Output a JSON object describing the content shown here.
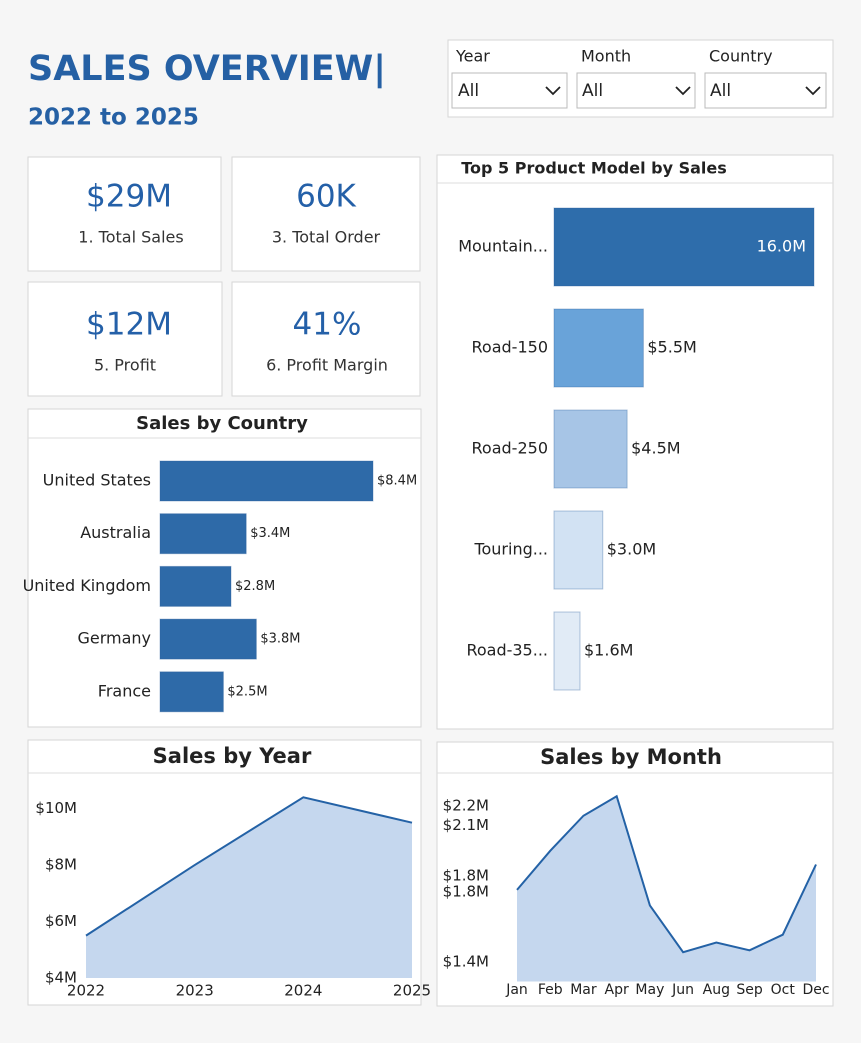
{
  "header": {
    "title": "SALES OVERVIEW|",
    "subtitle": "2022 to 2025"
  },
  "filters": [
    {
      "label": "Year",
      "value": "All"
    },
    {
      "label": "Month",
      "value": "All"
    },
    {
      "label": "Country",
      "value": "All"
    }
  ],
  "kpis": [
    {
      "value": "$29M",
      "label": "1. Total Sales"
    },
    {
      "value": "60K",
      "label": "3. Total Order"
    },
    {
      "value": "$12M",
      "label": "5. Profit"
    },
    {
      "value": "41%",
      "label": "6. Profit Margin"
    }
  ],
  "chart_data": [
    {
      "type": "hbar",
      "title": "Sales by Country",
      "categories": [
        "United States",
        "Australia",
        "United Kingdom",
        "Germany",
        "France"
      ],
      "values": [
        8.4,
        3.4,
        2.8,
        3.8,
        2.5
      ],
      "value_labels": [
        "$8.4M",
        "$3.4M",
        "$2.8M",
        "$3.8M",
        "$2.5M"
      ],
      "color": "#2e6aa8"
    },
    {
      "type": "hbar",
      "title": "Top 5 Product Model by Sales",
      "categories": [
        "Mountain...",
        "Road-150",
        "Road-250",
        "Touring...",
        "Road-35..."
      ],
      "values": [
        16.0,
        5.5,
        4.5,
        3.0,
        1.6
      ],
      "value_labels": [
        "16.0M",
        "$5.5M",
        "$4.5M",
        "$3.0M",
        "$1.6M"
      ],
      "colors": [
        "#2e6dab",
        "#69a3d9",
        "#a7c5e6",
        "#d2e2f3",
        "#e1ebf6"
      ]
    },
    {
      "type": "area",
      "title": "Sales by Year",
      "x": [
        2022,
        2023,
        2024,
        2025
      ],
      "values": [
        5.5,
        8.0,
        10.4,
        9.5
      ],
      "xlim": [
        2022,
        2025
      ],
      "xticks": [
        2022,
        2023,
        2024,
        2025
      ],
      "ylim": [
        4,
        10.8
      ],
      "yticks": [
        {
          "value": 4,
          "label": "$4M"
        },
        {
          "value": 6,
          "label": "$6M"
        },
        {
          "value": 8,
          "label": "$8M"
        },
        {
          "value": 10,
          "label": "$10M"
        }
      ],
      "grid": false,
      "color": "#2462a6",
      "fill": "#c5d7ee"
    },
    {
      "type": "area",
      "title": "Sales by Month",
      "categories": [
        "Jan",
        "Feb",
        "Mar",
        "Apr",
        "May",
        "Jun",
        "Aug",
        "Sep",
        "Oct",
        "Dec"
      ],
      "values": [
        1.77,
        1.97,
        2.15,
        2.25,
        1.69,
        1.45,
        1.5,
        1.46,
        1.54,
        1.9
      ],
      "ylim": [
        1.3,
        2.3
      ],
      "yticks": [
        {
          "value": 1.4,
          "label": "$1.4M"
        },
        {
          "value": 1.76,
          "label": "$1.8M"
        },
        {
          "value": 1.84,
          "label": "$1.8M"
        },
        {
          "value": 2.1,
          "label": "$2.1M"
        },
        {
          "value": 2.2,
          "label": "$2.2M"
        }
      ],
      "grid": false,
      "color": "#2462a6",
      "fill": "#c5d7ee"
    }
  ]
}
